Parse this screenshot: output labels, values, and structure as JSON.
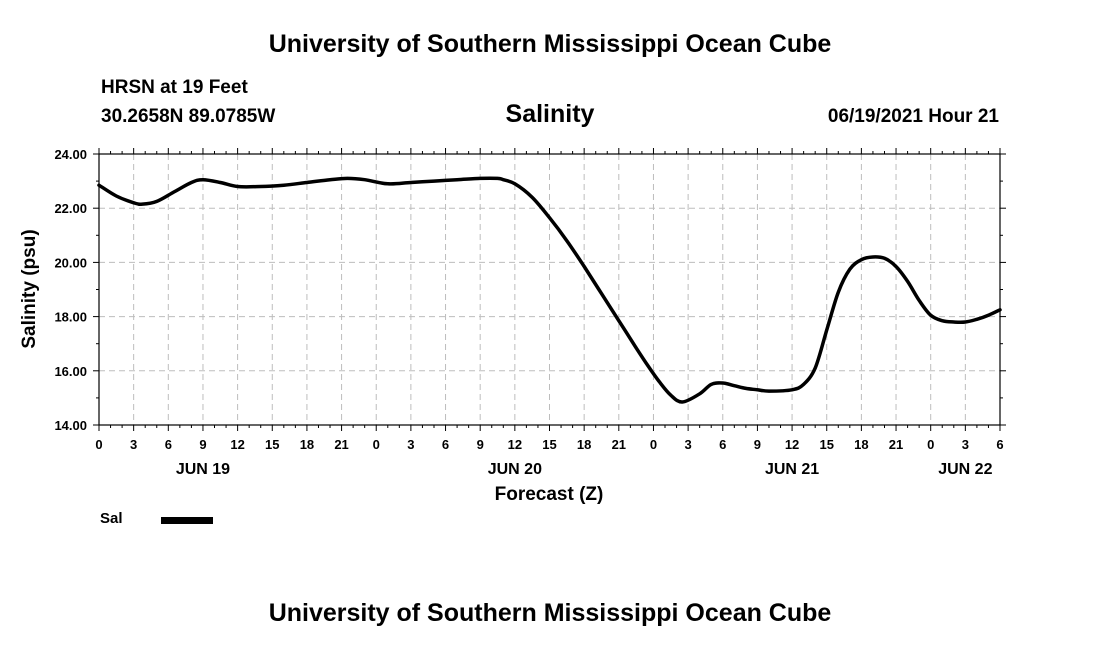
{
  "header": {
    "title": "University of Southern Mississippi Ocean Cube",
    "station": "HRSN at 19 Feet",
    "coordinates": "30.2658N  89.0785W",
    "chart_title": "Salinity",
    "date": "06/19/2021 Hour 21"
  },
  "footer": {
    "title": "University of Southern Mississippi Ocean Cube"
  },
  "legend": {
    "label": "Sal",
    "color": "#000000"
  },
  "chart_data": {
    "type": "line",
    "title": "Salinity",
    "xlabel": "Forecast (Z)",
    "ylabel": "Salinity (psu)",
    "ylim": [
      14,
      24
    ],
    "xlim": [
      0,
      78
    ],
    "grid": true,
    "yticks": [
      "14.00",
      "16.00",
      "18.00",
      "20.00",
      "22.00",
      "24.00"
    ],
    "xtick_labels": [
      "0",
      "3",
      "6",
      "9",
      "12",
      "15",
      "18",
      "21",
      "0",
      "3",
      "6",
      "9",
      "12",
      "15",
      "18",
      "21",
      "0",
      "3",
      "6",
      "9",
      "12",
      "15",
      "18",
      "21",
      "0",
      "3",
      "6"
    ],
    "date_labels": [
      {
        "label": "JUN 19",
        "hour": 9
      },
      {
        "label": "JUN 20",
        "hour": 36
      },
      {
        "label": "JUN 21",
        "hour": 60
      },
      {
        "label": "JUN 22",
        "hour": 75
      }
    ],
    "series": [
      {
        "name": "Sal",
        "x": [
          0,
          1.5,
          3,
          3.75,
          5,
          6.5,
          8,
          9,
          10.5,
          12,
          14,
          16,
          18,
          20,
          21.5,
          23,
          25,
          27,
          29,
          31,
          33,
          34.5,
          35,
          36,
          37.5,
          39,
          40.5,
          42,
          43.5,
          45,
          46.5,
          47.5,
          48.5,
          49.5,
          50.5,
          52,
          53,
          54,
          55,
          56,
          57,
          58,
          60,
          61,
          62,
          63,
          64,
          65,
          66,
          67,
          68,
          69,
          70,
          71,
          72,
          73,
          74,
          75,
          76,
          77,
          78
        ],
        "values": [
          22.85,
          22.45,
          22.2,
          22.15,
          22.25,
          22.6,
          22.95,
          23.05,
          22.95,
          22.8,
          22.8,
          22.85,
          22.95,
          23.05,
          23.1,
          23.05,
          22.9,
          22.95,
          23.0,
          23.05,
          23.1,
          23.1,
          23.05,
          22.9,
          22.4,
          21.65,
          20.8,
          19.85,
          18.85,
          17.85,
          16.85,
          16.2,
          15.6,
          15.1,
          14.85,
          15.15,
          15.5,
          15.55,
          15.45,
          15.35,
          15.3,
          15.25,
          15.3,
          15.5,
          16.1,
          17.5,
          18.9,
          19.75,
          20.1,
          20.2,
          20.15,
          19.85,
          19.3,
          18.6,
          18.05,
          17.85,
          17.8,
          17.8,
          17.9,
          18.05,
          18.25
        ]
      }
    ]
  }
}
